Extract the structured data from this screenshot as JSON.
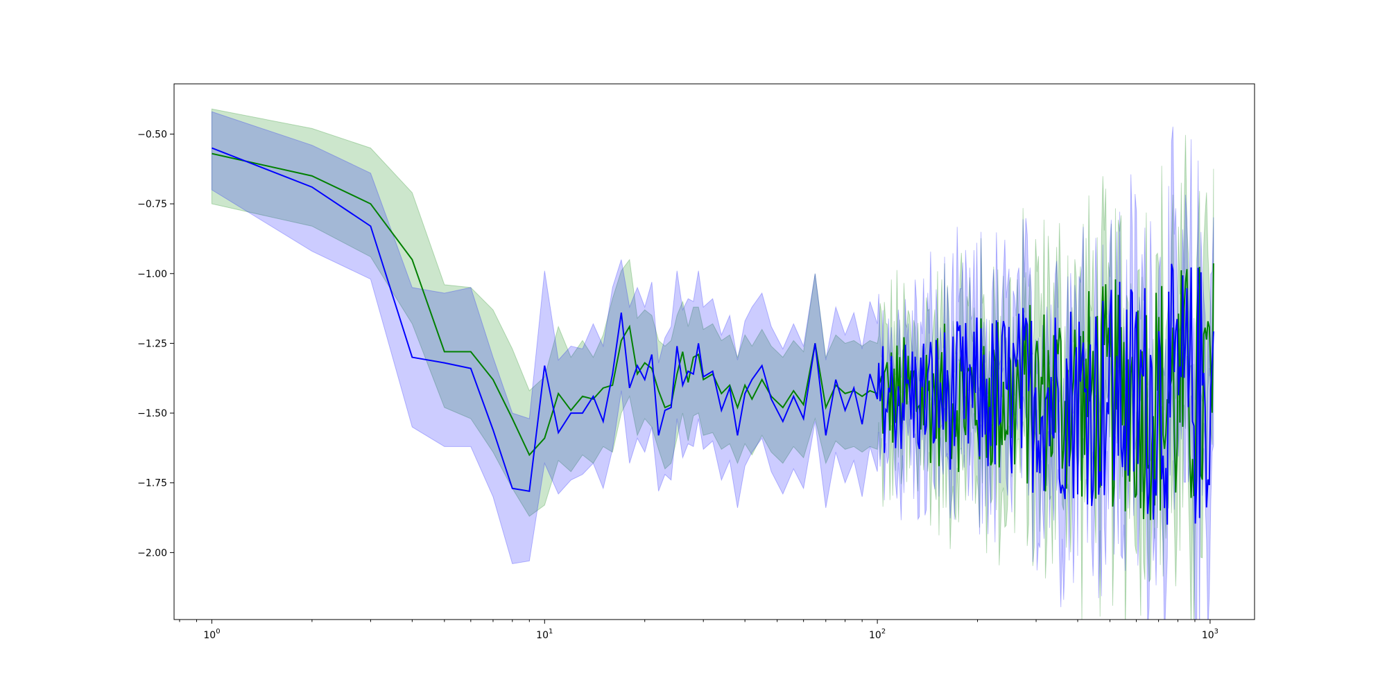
{
  "chart_data": {
    "type": "line",
    "title": "",
    "xlabel": "",
    "ylabel": "",
    "xscale": "log",
    "xlim": [
      0.77,
      1360
    ],
    "ylim": [
      -2.24,
      -0.32
    ],
    "grid": false,
    "legend": "none",
    "x_ticks": [
      {
        "base": "10",
        "exp": "0",
        "value": 1
      },
      {
        "base": "10",
        "exp": "1",
        "value": 10
      },
      {
        "base": "10",
        "exp": "2",
        "value": 100
      },
      {
        "base": "10",
        "exp": "3",
        "value": 1000
      }
    ],
    "y_ticks": [
      {
        "label": "−0.50",
        "value": -0.5
      },
      {
        "label": "−0.75",
        "value": -0.75
      },
      {
        "label": "−1.00",
        "value": -1.0
      },
      {
        "label": "−1.25",
        "value": -1.25
      },
      {
        "label": "−1.50",
        "value": -1.5
      },
      {
        "label": "−1.75",
        "value": -1.75
      },
      {
        "label": "−2.00",
        "value": -2.0
      }
    ],
    "series": [
      {
        "color": "#008000",
        "band_color": "#008000",
        "band_opacity": 0.2,
        "x": [
          1,
          2,
          3,
          4,
          5,
          6,
          7,
          8,
          9,
          10,
          11,
          12,
          13,
          14,
          15,
          16,
          17,
          18,
          19,
          20,
          21,
          22,
          23,
          24,
          25,
          26,
          27,
          28,
          29,
          30,
          32,
          34,
          36,
          38,
          40,
          42,
          45,
          48,
          52,
          56,
          60,
          65,
          70,
          75,
          80,
          85,
          90,
          95,
          100
        ],
        "mean": [
          -0.57,
          -0.65,
          -0.75,
          -0.95,
          -1.28,
          -1.28,
          -1.38,
          -1.52,
          -1.65,
          -1.59,
          -1.43,
          -1.49,
          -1.44,
          -1.45,
          -1.41,
          -1.4,
          -1.24,
          -1.19,
          -1.36,
          -1.32,
          -1.34,
          -1.42,
          -1.48,
          -1.47,
          -1.36,
          -1.28,
          -1.39,
          -1.3,
          -1.29,
          -1.38,
          -1.36,
          -1.43,
          -1.4,
          -1.48,
          -1.4,
          -1.45,
          -1.38,
          -1.44,
          -1.48,
          -1.42,
          -1.47,
          -1.25,
          -1.48,
          -1.4,
          -1.43,
          -1.42,
          -1.44,
          -1.42,
          -1.43
        ],
        "upper": [
          -0.41,
          -0.48,
          -0.55,
          -0.71,
          -1.04,
          -1.05,
          -1.13,
          -1.27,
          -1.42,
          -1.37,
          -1.19,
          -1.3,
          -1.24,
          -1.3,
          -1.22,
          -1.09,
          -0.99,
          -0.95,
          -1.16,
          -1.13,
          -1.15,
          -1.24,
          -1.26,
          -1.24,
          -1.15,
          -1.1,
          -1.19,
          -1.12,
          -1.12,
          -1.2,
          -1.18,
          -1.24,
          -1.22,
          -1.3,
          -1.22,
          -1.26,
          -1.2,
          -1.26,
          -1.3,
          -1.24,
          -1.28,
          -1.0,
          -1.3,
          -1.22,
          -1.25,
          -1.24,
          -1.26,
          -1.24,
          -1.25
        ],
        "lower": [
          -0.75,
          -0.83,
          -0.94,
          -1.18,
          -1.48,
          -1.52,
          -1.64,
          -1.77,
          -1.87,
          -1.83,
          -1.67,
          -1.71,
          -1.65,
          -1.68,
          -1.62,
          -1.64,
          -1.5,
          -1.44,
          -1.58,
          -1.52,
          -1.55,
          -1.63,
          -1.7,
          -1.68,
          -1.59,
          -1.5,
          -1.6,
          -1.51,
          -1.5,
          -1.58,
          -1.57,
          -1.63,
          -1.61,
          -1.68,
          -1.61,
          -1.65,
          -1.58,
          -1.64,
          -1.68,
          -1.62,
          -1.66,
          -1.52,
          -1.68,
          -1.6,
          -1.63,
          -1.62,
          -1.64,
          -1.62,
          -1.63
        ]
      },
      {
        "color": "#0000ff",
        "band_color": "#0000ff",
        "band_opacity": 0.2,
        "x": [
          1,
          2,
          3,
          4,
          5,
          6,
          7,
          8,
          9,
          10,
          11,
          12,
          13,
          14,
          15,
          16,
          17,
          18,
          19,
          20,
          21,
          22,
          23,
          24,
          25,
          26,
          27,
          28,
          29,
          30,
          32,
          34,
          36,
          38,
          40,
          42,
          45,
          48,
          52,
          56,
          60,
          65,
          70,
          75,
          80,
          85,
          90,
          95,
          100
        ],
        "mean": [
          -0.55,
          -0.69,
          -0.83,
          -1.3,
          -1.32,
          -1.34,
          -1.56,
          -1.77,
          -1.78,
          -1.33,
          -1.57,
          -1.5,
          -1.5,
          -1.44,
          -1.53,
          -1.36,
          -1.14,
          -1.41,
          -1.33,
          -1.38,
          -1.29,
          -1.58,
          -1.49,
          -1.48,
          -1.26,
          -1.4,
          -1.35,
          -1.36,
          -1.25,
          -1.37,
          -1.35,
          -1.49,
          -1.41,
          -1.58,
          -1.43,
          -1.38,
          -1.33,
          -1.45,
          -1.53,
          -1.44,
          -1.52,
          -1.25,
          -1.58,
          -1.38,
          -1.49,
          -1.41,
          -1.54,
          -1.36,
          -1.45
        ],
        "upper": [
          -0.42,
          -0.54,
          -0.64,
          -1.05,
          -1.07,
          -1.05,
          -1.3,
          -1.5,
          -1.52,
          -0.99,
          -1.31,
          -1.26,
          -1.27,
          -1.18,
          -1.26,
          -1.05,
          -0.95,
          -1.12,
          -1.05,
          -1.12,
          -1.03,
          -1.32,
          -1.23,
          -1.19,
          -0.99,
          -1.13,
          -1.09,
          -1.1,
          -0.99,
          -1.12,
          -1.09,
          -1.22,
          -1.15,
          -1.31,
          -1.17,
          -1.12,
          -1.07,
          -1.19,
          -1.27,
          -1.18,
          -1.26,
          -1.0,
          -1.31,
          -1.12,
          -1.22,
          -1.14,
          -1.27,
          -1.1,
          -1.18
        ],
        "lower": [
          -0.7,
          -0.92,
          -1.02,
          -1.55,
          -1.62,
          -1.62,
          -1.8,
          -2.04,
          -2.03,
          -1.68,
          -1.79,
          -1.74,
          -1.72,
          -1.68,
          -1.77,
          -1.63,
          -1.42,
          -1.68,
          -1.59,
          -1.64,
          -1.55,
          -1.78,
          -1.72,
          -1.74,
          -1.52,
          -1.66,
          -1.61,
          -1.62,
          -1.52,
          -1.63,
          -1.6,
          -1.74,
          -1.67,
          -1.84,
          -1.69,
          -1.64,
          -1.59,
          -1.71,
          -1.79,
          -1.7,
          -1.77,
          -1.53,
          -1.84,
          -1.64,
          -1.75,
          -1.67,
          -1.8,
          -1.62,
          -1.71
        ]
      }
    ],
    "tail_noise": {
      "x_range": [
        100,
        1024
      ],
      "mean_level": -1.44,
      "spread": 0.2,
      "points": 240,
      "note_series": "continuation of both series as noisy oscillation"
    }
  }
}
